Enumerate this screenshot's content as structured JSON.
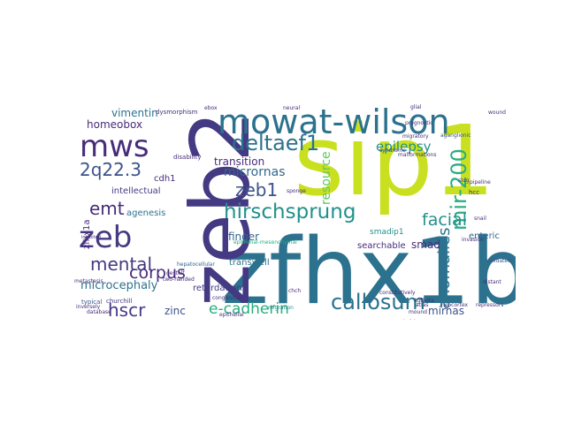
{
  "palette": {
    "dark_purple": "#472c7a",
    "purple": "#443a83",
    "indigo": "#3b528b",
    "blue": "#31688e",
    "steel": "#2c728e",
    "teal": "#21918c",
    "teal_green": "#28ae80",
    "green": "#5ec962",
    "lime": "#addc30",
    "yellow": "#c8e020"
  },
  "words": {
    "zfhx1b": "zfhx1b",
    "sip1": "sip1",
    "zeb2": "zeb2",
    "mowat_wilson": "mowat-wilson",
    "zeb": "zeb",
    "mws": "mws",
    "hirschsprung": "hirschsprung",
    "callosum": "callosum",
    "deltaef1": "deltaef1",
    "mir_200": "mir-200",
    "corpus": "corpus",
    "e_cadherin": "e-cadherin",
    "hscr": "hscr",
    "emt": "emt",
    "facial": "facial",
    "mental": "mental",
    "zeb1": "zeb1",
    "q22_3": "2q22.3",
    "anomalies": "anomalies",
    "epilepsy": "epilepsy",
    "resource": "resource",
    "microcephaly": "microcephaly",
    "micrornas": "micrornas",
    "vimentin": "vimentin",
    "homeobox": "homeobox",
    "transition": "transition",
    "finger": "finger",
    "mirnas": "mirnas",
    "zinc": "zinc",
    "smad": "smad",
    "retardation": "retardation",
    "intellectual": "intellectual",
    "transwell": "transwell",
    "agenesis": "agenesis",
    "zfhx1a": "zfhx1a",
    "enteric": "enteric",
    "cdh1": "cdh1",
    "searchable": "searchable",
    "smadip1": "smadip1",
    "hcc": "hcc",
    "typical": "typical",
    "churchill": "churchill",
    "congenital": "congenital",
    "disability": "disability",
    "dysmorphism": "dysmorphism",
    "syndrome": "syndrome",
    "pipeline": "pipeline",
    "migratory": "migratory",
    "aganglionic": "aganglionic",
    "neocortex": "neocortex",
    "atlas": "atlas",
    "distant": "distant",
    "repressors": "repressors",
    "validated": "validated",
    "metastasis": "metastasis",
    "inversely": "inversely",
    "database": "database",
    "chch": "chch",
    "mound": "mound",
    "migration": "migration",
    "gestalt": "gestalt",
    "two_handed": "two-handed",
    "hepatocellular": "hepatocellular",
    "tgfbeta": "tgfbeta",
    "sponge": "sponge",
    "metastatic": "metastatic",
    "wound": "wound",
    "epithelial_mesenchymal": "epithelial-mesenchymal",
    "ebox": "ebox",
    "slug": "slug",
    "malformations": "malformations",
    "glial": "glial",
    "neural": "neural",
    "inhibited": "inhibited",
    "constitutively": "constitutively",
    "prognostic": "prognostic",
    "invasion": "invasion",
    "snail": "snail",
    "twist": "twist",
    "epithelial": "epithelial"
  }
}
